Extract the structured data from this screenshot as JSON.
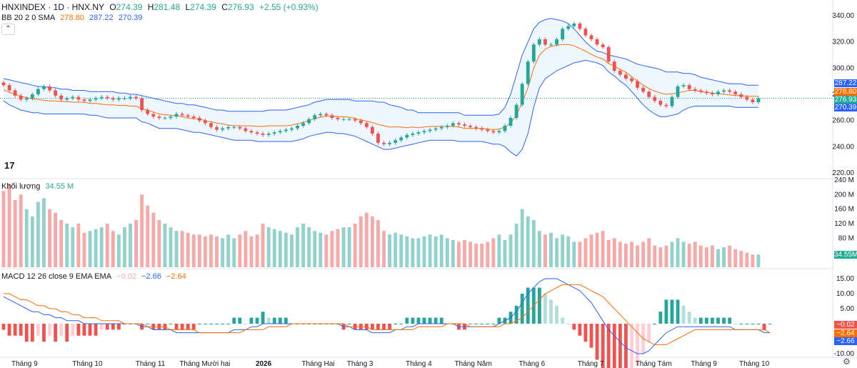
{
  "header": {
    "symbol": "HNXINDEX · 1D · HNX.NY",
    "open_label": "O",
    "open": "274.39",
    "high_label": "H",
    "high": "281.48",
    "low_label": "L",
    "low": "274.39",
    "close_label": "C",
    "close": "276.93",
    "change": "+2.55 (+0.93%)"
  },
  "bb": {
    "label": "BB 20 2 0 SMA",
    "basis": "278.80",
    "upper": "287.22",
    "lower": "270.39"
  },
  "volume": {
    "label": "Khối lượng",
    "value": "34.55 M",
    "tag": "34.55M"
  },
  "macd": {
    "label": "MACD 12 26 close 9 EMA EMA",
    "hist": "−0.02",
    "macd": "−2.66",
    "signal": "−2.64"
  },
  "price_tags": {
    "upper": "287.22",
    "basis": "278.80",
    "close": "276.93",
    "lower": "270.39"
  },
  "macd_tags": {
    "hist": "−0.02",
    "signal": "−2.64",
    "macd": "−2.66"
  },
  "icons": {
    "collapse": "chevron-up-icon",
    "logo": "tradingview-logo-icon",
    "settings": "gear-icon"
  },
  "colors": {
    "up": "#26a69a",
    "down": "#ef5350",
    "band": "#2962ff",
    "basis": "#ff6d00",
    "macd": "#2962ff",
    "signal": "#ff6d00"
  },
  "chart_data": {
    "type": "candlestick",
    "x_ticks": [
      "Tháng 9",
      "Tháng 10",
      "Tháng 11",
      "Tháng Mười hai",
      "2026",
      "Tháng Hai",
      "Tháng 3",
      "Tháng 4",
      "Tháng Năm",
      "Tháng 6",
      "Tháng 7",
      "Tháng Tám",
      "Tháng 9",
      "Tháng 10"
    ],
    "price_axis": {
      "ticks": [
        "340.00",
        "320.00",
        "300.00",
        "280.00",
        "260.00",
        "240.00",
        "220.00"
      ],
      "ylim": [
        220,
        340
      ]
    },
    "volume_axis": {
      "ticks": [
        "240 M",
        "200 M",
        "160 M",
        "120 M",
        "80 M"
      ],
      "ylim": [
        0,
        240
      ]
    },
    "macd_axis": {
      "ticks": [
        "15.00",
        "10.00",
        "5.00",
        "-5.00",
        "-10.00"
      ],
      "ylim": [
        -10,
        15
      ]
    },
    "close": [
      287,
      283,
      279,
      276,
      277,
      280,
      284,
      286,
      283,
      279,
      276,
      277,
      278,
      276,
      275,
      276,
      277,
      278,
      277,
      276,
      277,
      277,
      278,
      277,
      268,
      265,
      263,
      262,
      262,
      263,
      265,
      264,
      263,
      262,
      260,
      258,
      255,
      253,
      254,
      255,
      255,
      254,
      252,
      251,
      250,
      249,
      250,
      251,
      252,
      253,
      254,
      256,
      258,
      261,
      264,
      265,
      264,
      262,
      261,
      261,
      261,
      260,
      258,
      255,
      250,
      243,
      242,
      243,
      245,
      247,
      249,
      250,
      251,
      252,
      253,
      254,
      255,
      256,
      258,
      257,
      256,
      255,
      254,
      253,
      252,
      251,
      252,
      256,
      262,
      272,
      288,
      305,
      318,
      322,
      318,
      318,
      322,
      330,
      332,
      334,
      330,
      325,
      322,
      318,
      316,
      305,
      298,
      295,
      292,
      290,
      285,
      282,
      278,
      275,
      272,
      271,
      278,
      286,
      287,
      284,
      283,
      282,
      281,
      280,
      282,
      283,
      282,
      280,
      278,
      276,
      274,
      277
    ],
    "upper_band": [
      292,
      291,
      290,
      289,
      288,
      287,
      286,
      286,
      285,
      285,
      284,
      284,
      283,
      283,
      283,
      282,
      282,
      282,
      282,
      282,
      281,
      281,
      280,
      280,
      279,
      278,
      277,
      276,
      275,
      274,
      273,
      273,
      272,
      272,
      271,
      270,
      269,
      268,
      268,
      267,
      267,
      267,
      267,
      267,
      267,
      267,
      268,
      268,
      268,
      268,
      269,
      270,
      271,
      272,
      274,
      275,
      276,
      276,
      276,
      276,
      276,
      275,
      275,
      275,
      275,
      274,
      274,
      272,
      271,
      270,
      268,
      268,
      266,
      266,
      266,
      266,
      266,
      266,
      266,
      266,
      264,
      264,
      264,
      264,
      264,
      264,
      265,
      270,
      280,
      295,
      310,
      320,
      330,
      335,
      337,
      338,
      337,
      336,
      334,
      330,
      325,
      320,
      316,
      313,
      312,
      310,
      309,
      308,
      307,
      305,
      303,
      302,
      301,
      300,
      299,
      297,
      297,
      297,
      296,
      296,
      295,
      293,
      292,
      291,
      290,
      289,
      288,
      288,
      288,
      287,
      287,
      287
    ],
    "lower_band": [
      275,
      272,
      270,
      268,
      267,
      266,
      266,
      265,
      265,
      265,
      265,
      265,
      265,
      265,
      265,
      264,
      264,
      263,
      262,
      262,
      262,
      262,
      262,
      262,
      259,
      258,
      256,
      254,
      254,
      254,
      254,
      253,
      252,
      251,
      251,
      250,
      249,
      248,
      247,
      246,
      245,
      245,
      245,
      245,
      244,
      244,
      244,
      244,
      244,
      244,
      244,
      245,
      246,
      248,
      249,
      250,
      251,
      251,
      250,
      250,
      249,
      248,
      246,
      244,
      242,
      240,
      238,
      238,
      239,
      240,
      241,
      242,
      243,
      244,
      245,
      245,
      245,
      245,
      245,
      244,
      244,
      244,
      244,
      244,
      243,
      242,
      242,
      240,
      236,
      233,
      238,
      250,
      270,
      285,
      292,
      295,
      298,
      300,
      302,
      304,
      305,
      306,
      305,
      304,
      302,
      297,
      294,
      290,
      287,
      282,
      277,
      272,
      268,
      265,
      263,
      263,
      264,
      265,
      268,
      270,
      271,
      271,
      271,
      271,
      271,
      271,
      271,
      270,
      270,
      270,
      270,
      270
    ],
    "volume_m": [
      210,
      230,
      185,
      200,
      160,
      140,
      180,
      190,
      160,
      150,
      130,
      120,
      110,
      120,
      95,
      100,
      105,
      110,
      120,
      100,
      90,
      110,
      120,
      130,
      200,
      170,
      150,
      130,
      120,
      110,
      100,
      100,
      95,
      90,
      90,
      85,
      90,
      85,
      80,
      90,
      80,
      90,
      100,
      85,
      90,
      120,
      110,
      105,
      100,
      95,
      90,
      110,
      120,
      110,
      100,
      95,
      90,
      100,
      105,
      110,
      110,
      120,
      140,
      150,
      140,
      130,
      100,
      90,
      95,
      90,
      85,
      80,
      80,
      85,
      90,
      85,
      90,
      80,
      75,
      70,
      75,
      70,
      65,
      65,
      70,
      80,
      90,
      75,
      90,
      120,
      160,
      140,
      130,
      100,
      90,
      95,
      80,
      90,
      85,
      70,
      70,
      80,
      90,
      95,
      100,
      75,
      80,
      70,
      65,
      70,
      60,
      70,
      80,
      60,
      55,
      60,
      70,
      80,
      70,
      65,
      70,
      60,
      55,
      60,
      50,
      55,
      60,
      50,
      45,
      40,
      35,
      35
    ],
    "macd": [
      9,
      8,
      7,
      6,
      5,
      4,
      4,
      3,
      3,
      2,
      2,
      1,
      1,
      1,
      0,
      0,
      0,
      0,
      0,
      0,
      0,
      0,
      0,
      0,
      -1,
      -1,
      -2,
      -2,
      -2,
      -2,
      -3,
      -3,
      -3,
      -3,
      -3,
      -3,
      -3,
      -3,
      -3,
      -3,
      -2,
      -2,
      -2,
      -1,
      -1,
      0,
      0,
      0,
      0,
      0,
      0,
      0,
      0,
      0,
      0,
      0,
      0,
      0,
      0,
      -1,
      -1,
      -2,
      -2,
      -2,
      -3,
      -3,
      -3,
      -3,
      -2,
      -2,
      -1,
      -1,
      0,
      0,
      0,
      0,
      0,
      0,
      0,
      -1,
      -1,
      -1,
      -1,
      -1,
      -1,
      -1,
      0,
      1,
      2,
      4,
      7,
      10,
      12,
      14,
      15,
      15,
      15,
      14,
      13,
      12,
      11,
      9,
      7,
      4,
      1,
      -2,
      -4,
      -6,
      -8,
      -9,
      -10,
      -10,
      -9,
      -7,
      -5,
      -3,
      -2,
      -1,
      -1,
      -1,
      -1,
      -1,
      -1,
      -1,
      -1,
      -1,
      -1,
      -2,
      -2,
      -2,
      -2,
      -2,
      -3,
      -3
    ],
    "signal": [
      10,
      10,
      9,
      8,
      8,
      7,
      6,
      6,
      5,
      5,
      4,
      4,
      3,
      3,
      2,
      2,
      2,
      1,
      1,
      1,
      1,
      0,
      0,
      0,
      0,
      -1,
      -1,
      -1,
      -1,
      -2,
      -2,
      -2,
      -2,
      -2,
      -3,
      -3,
      -3,
      -3,
      -3,
      -3,
      -3,
      -3,
      -2,
      -2,
      -2,
      -2,
      -1,
      -1,
      -1,
      -1,
      0,
      0,
      0,
      0,
      0,
      0,
      0,
      0,
      0,
      0,
      -1,
      -1,
      -1,
      -1,
      -2,
      -2,
      -2,
      -2,
      -2,
      -2,
      -2,
      -2,
      -1,
      -1,
      -1,
      -1,
      -1,
      0,
      0,
      0,
      0,
      -1,
      -1,
      -1,
      -1,
      -1,
      -1,
      0,
      0,
      1,
      2,
      4,
      6,
      8,
      10,
      11,
      12,
      13,
      13,
      13,
      13,
      12,
      11,
      10,
      9,
      7,
      5,
      3,
      1,
      -1,
      -3,
      -5,
      -6,
      -7,
      -7,
      -7,
      -6,
      -5,
      -4,
      -3,
      -2,
      -2,
      -2,
      -2,
      -2,
      -2,
      -2,
      -2,
      -2,
      -2,
      -2,
      -2,
      -2,
      -3
    ]
  }
}
